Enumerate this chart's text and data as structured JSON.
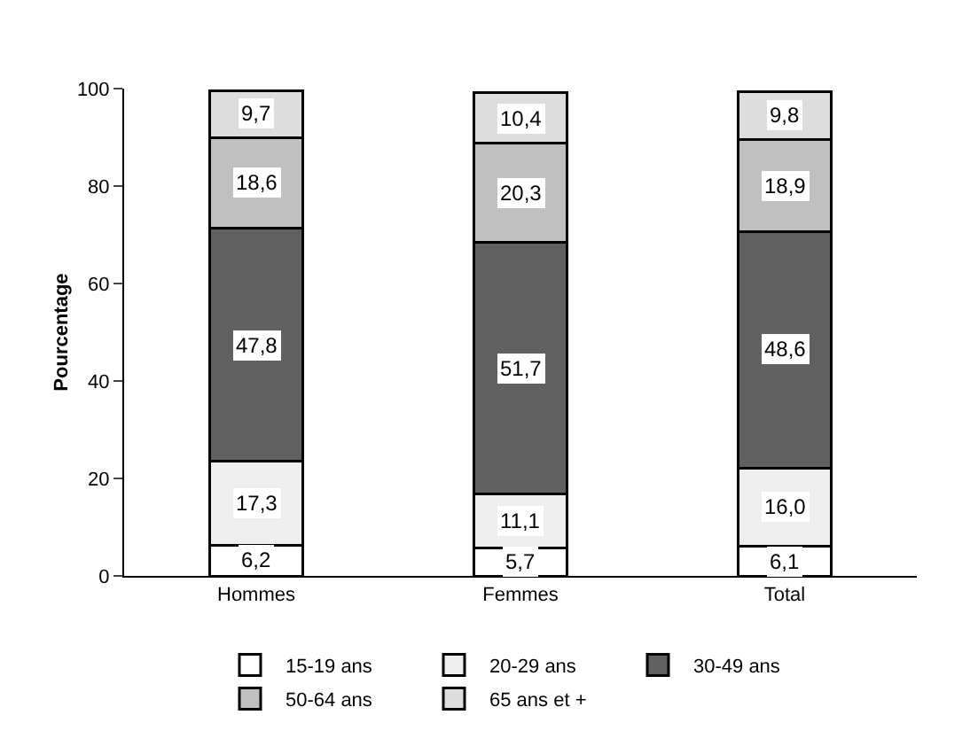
{
  "chart_data": {
    "type": "bar",
    "stacked": true,
    "ylabel": "Pourcentage",
    "categories": [
      "Hommes",
      "Femmes",
      "Total"
    ],
    "ylim": [
      0,
      100
    ],
    "yticks": [
      0,
      20,
      40,
      60,
      80,
      100
    ],
    "grid": false,
    "legend": "bottom",
    "series": [
      {
        "name": "15-19 ans",
        "color": "#ffffff",
        "values": [
          6.2,
          5.7,
          6.1
        ],
        "value_labels": [
          "6,2",
          "5,7",
          "6,1"
        ]
      },
      {
        "name": "20-29 ans",
        "color": "#eeeeee",
        "values": [
          17.3,
          11.1,
          16.0
        ],
        "value_labels": [
          "17,3",
          "11,1",
          "16,0"
        ]
      },
      {
        "name": "30-49 ans",
        "color": "#606060",
        "values": [
          47.8,
          51.7,
          48.6
        ],
        "value_labels": [
          "47,8",
          "51,7",
          "48,6"
        ]
      },
      {
        "name": "50-64 ans",
        "color": "#c0c0c0",
        "values": [
          18.6,
          20.3,
          18.9
        ],
        "value_labels": [
          "18,6",
          "20,3",
          "18,9"
        ]
      },
      {
        "name": "65 ans et +",
        "color": "#dddddd",
        "values": [
          9.7,
          10.4,
          9.8
        ],
        "value_labels": [
          "9,7",
          "10,4",
          "9,8"
        ]
      }
    ]
  }
}
